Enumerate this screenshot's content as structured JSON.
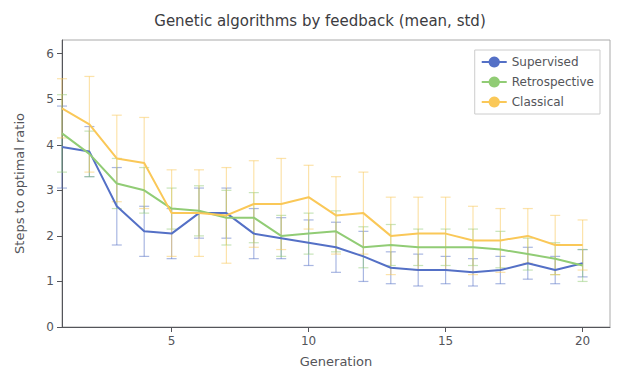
{
  "chart_data": {
    "type": "line",
    "title": "Genetic algorithms by feedback (mean, std)",
    "xlabel": "Generation",
    "ylabel": "Steps to optimal ratio",
    "xlim": [
      1,
      21
    ],
    "ylim": [
      0,
      6.3
    ],
    "xticks": [
      5,
      10,
      15,
      20
    ],
    "yticks": [
      0,
      1,
      2,
      3,
      4,
      5,
      6
    ],
    "legend": "upper right",
    "x": [
      1,
      2,
      3,
      4,
      5,
      6,
      7,
      8,
      9,
      10,
      11,
      12,
      13,
      14,
      15,
      16,
      17,
      18,
      19,
      20
    ],
    "series": [
      {
        "name": "Supervised",
        "values": [
          3.95,
          3.85,
          2.65,
          2.1,
          2.05,
          2.5,
          2.5,
          2.05,
          1.95,
          1.85,
          1.75,
          1.55,
          1.3,
          1.25,
          1.25,
          1.2,
          1.25,
          1.4,
          1.25,
          1.4
        ],
        "errors": [
          0.9,
          0.55,
          0.85,
          0.55,
          0.55,
          0.55,
          0.55,
          0.55,
          0.45,
          0.5,
          0.55,
          0.55,
          0.35,
          0.35,
          0.3,
          0.3,
          0.3,
          0.35,
          0.3,
          0.3
        ]
      },
      {
        "name": "Retrospective",
        "values": [
          4.25,
          3.8,
          3.15,
          3.0,
          2.6,
          2.55,
          2.4,
          2.4,
          2.0,
          2.05,
          2.1,
          1.75,
          1.8,
          1.75,
          1.75,
          1.75,
          1.7,
          1.6,
          1.5,
          1.35
        ],
        "errors": [
          0.85,
          0.5,
          0.55,
          0.5,
          0.45,
          0.55,
          0.6,
          0.55,
          0.45,
          0.45,
          0.45,
          0.45,
          0.45,
          0.4,
          0.4,
          0.4,
          0.4,
          0.35,
          0.35,
          0.35
        ]
      },
      {
        "name": "Classical",
        "values": [
          4.8,
          4.45,
          3.7,
          3.6,
          2.5,
          2.5,
          2.45,
          2.7,
          2.7,
          2.85,
          2.45,
          2.5,
          2.0,
          2.05,
          2.05,
          1.9,
          1.9,
          2.0,
          1.8,
          1.8
        ],
        "errors": [
          0.65,
          1.05,
          0.95,
          1.0,
          0.95,
          0.95,
          1.05,
          0.95,
          1.0,
          0.7,
          0.85,
          0.9,
          0.85,
          0.8,
          0.8,
          0.75,
          0.7,
          0.6,
          0.65,
          0.55
        ]
      }
    ]
  }
}
